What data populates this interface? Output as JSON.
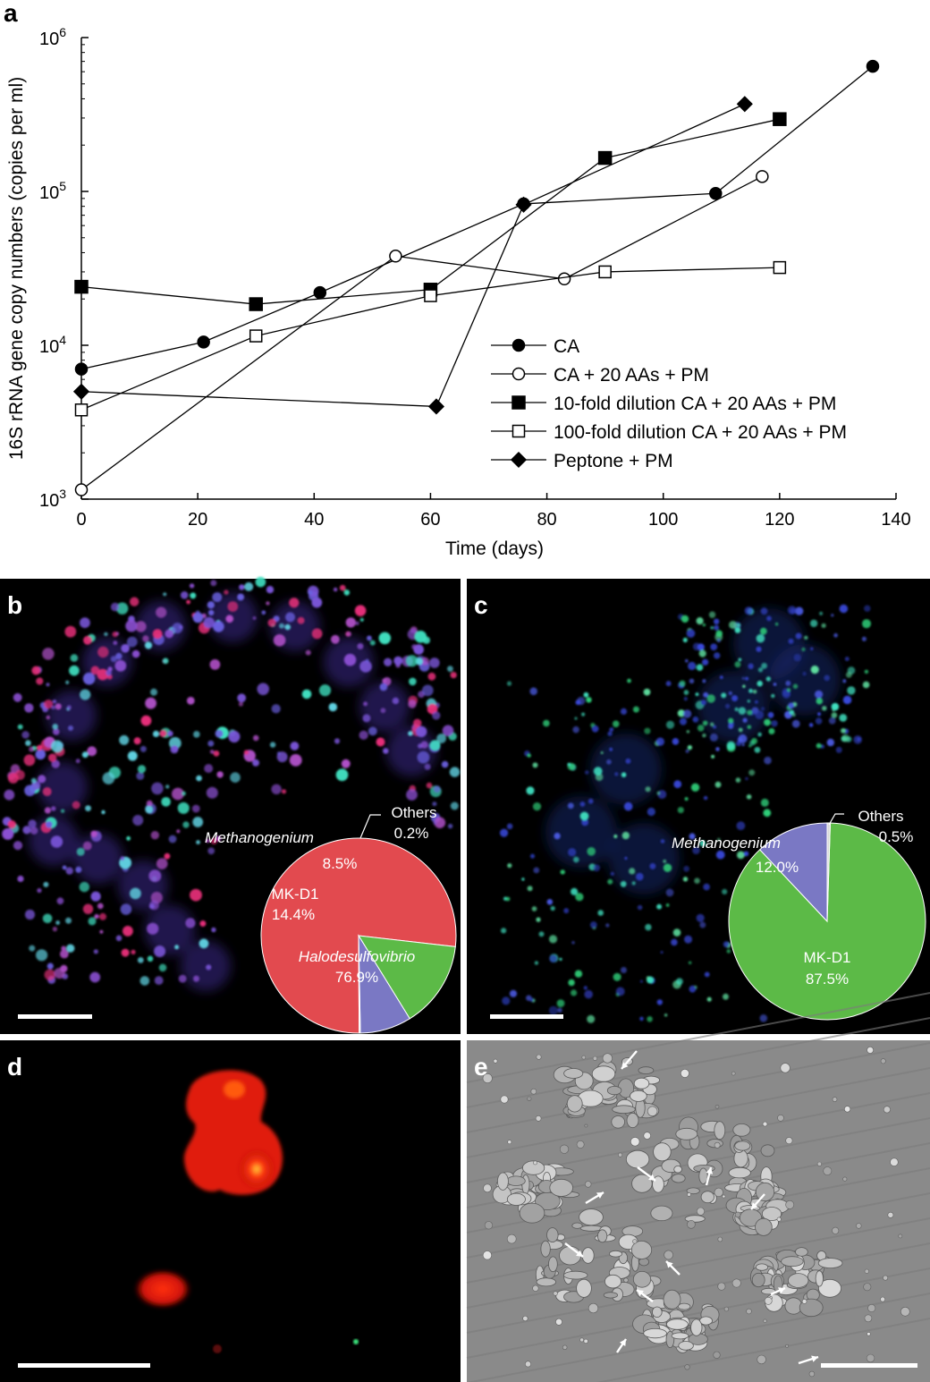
{
  "panel_labels": {
    "a": "a",
    "b": "b",
    "c": "c",
    "d": "d",
    "e": "e"
  },
  "chart_data": [
    {
      "panel": "a",
      "type": "line",
      "x_scale": "linear",
      "y_scale": "log",
      "xlabel": "Time (days)",
      "ylabel": "16S rRNA gene copy numbers (copies per ml)",
      "xlim": [
        0,
        140
      ],
      "ylim": [
        1000,
        1000000
      ],
      "xticks": [
        0,
        20,
        40,
        60,
        80,
        100,
        120,
        140
      ],
      "yticks": [
        {
          "value": 1000,
          "base": "10",
          "exp": "3"
        },
        {
          "value": 10000,
          "base": "10",
          "exp": "4"
        },
        {
          "value": 100000,
          "base": "10",
          "exp": "5"
        },
        {
          "value": 1000000,
          "base": "10",
          "exp": "6"
        }
      ],
      "grid": false,
      "legend_position": "bottom-right",
      "series": [
        {
          "name": "CA",
          "marker": "circle-filled",
          "points": [
            [
              0,
              7000
            ],
            [
              21,
              10500
            ],
            [
              41,
              22000
            ],
            [
              76,
              83000
            ],
            [
              109,
              97000
            ],
            [
              136,
              650000
            ]
          ]
        },
        {
          "name": "CA + 20 AAs + PM",
          "marker": "circle-open",
          "points": [
            [
              0,
              1150
            ],
            [
              54,
              38000
            ],
            [
              83,
              27000
            ],
            [
              117,
              125000
            ]
          ]
        },
        {
          "name": "10-fold dilution CA + 20 AAs + PM",
          "marker": "square-filled",
          "points": [
            [
              0,
              24000
            ],
            [
              30,
              18500
            ],
            [
              60,
              23000
            ],
            [
              90,
              165000
            ],
            [
              120,
              295000
            ]
          ]
        },
        {
          "name": "100-fold dilution CA + 20 AAs + PM",
          "marker": "square-open",
          "points": [
            [
              0,
              3800
            ],
            [
              30,
              11500
            ],
            [
              60,
              21000
            ],
            [
              90,
              30000
            ],
            [
              120,
              32000
            ]
          ]
        },
        {
          "name": "Peptone + PM",
          "marker": "diamond-filled",
          "points": [
            [
              0,
              5000
            ],
            [
              61,
              4000
            ],
            [
              76,
              82000
            ],
            [
              114,
              370000
            ]
          ]
        }
      ]
    },
    {
      "panel": "b",
      "type": "pie",
      "slices": [
        {
          "name": "Halodesulfovibrio",
          "value": 76.9,
          "label": "76.9%",
          "color": "#e24a4f",
          "italic": true
        },
        {
          "name": "MK-D1",
          "value": 14.4,
          "label": "14.4%",
          "color": "#5cba47",
          "italic": false
        },
        {
          "name": "Methanogenium",
          "value": 8.5,
          "label": "8.5%",
          "color": "#7a78c4",
          "italic": true
        },
        {
          "name": "Others",
          "value": 0.2,
          "label": "0.2%",
          "color": "#d8d8d8",
          "italic": false
        }
      ]
    },
    {
      "panel": "c",
      "type": "pie",
      "slices": [
        {
          "name": "MK-D1",
          "value": 87.5,
          "label": "87.5%",
          "color": "#5cba47",
          "italic": false
        },
        {
          "name": "Methanogenium",
          "value": 12.0,
          "label": "12.0%",
          "color": "#7a78c4",
          "italic": true
        },
        {
          "name": "Others",
          "value": 0.5,
          "label": "0.5%",
          "color": "#d8d8d8",
          "italic": false
        }
      ]
    }
  ],
  "colors": {
    "micrograph_background": "#000000",
    "sem_background": "#8a8a8a",
    "scale_bar": "#ffffff",
    "fish_red": "#e8201a",
    "fish_green": "#3be07a",
    "fish_blue": "#4a3fd0",
    "fish_magenta": "#c03aa0"
  }
}
